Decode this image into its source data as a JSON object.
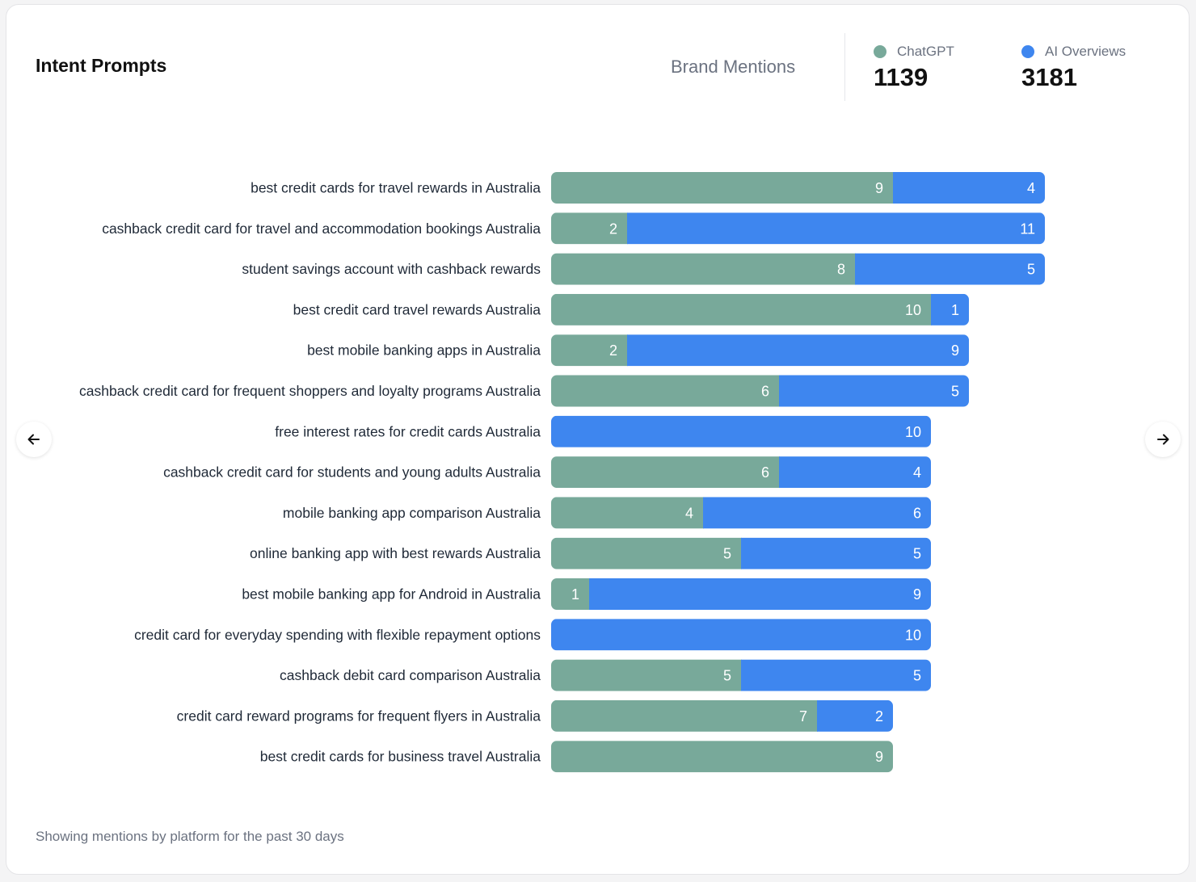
{
  "card": {
    "title": "Intent Prompts",
    "metric_label": "Brand Mentions",
    "footer": "Showing mentions by platform for the past 30 days"
  },
  "legend": [
    {
      "name": "ChatGPT",
      "total": "1139",
      "color": "#78a99a"
    },
    {
      "name": "AI Overviews",
      "total": "3181",
      "color": "#3e86ef"
    }
  ],
  "nav": {
    "prev_icon": "arrow-left-icon",
    "next_icon": "arrow-right-icon"
  },
  "chart_data": {
    "type": "bar",
    "orientation": "horizontal",
    "stacked": true,
    "categories": [
      "best credit cards for travel rewards in Australia",
      "cashback credit card for travel and accommodation bookings Australia",
      "student savings account with cashback rewards",
      "best credit card travel rewards Australia",
      "best mobile banking apps in Australia",
      "cashback credit card for frequent shoppers and loyalty programs Australia",
      "free interest rates for credit cards Australia",
      "cashback credit card for students and young adults Australia",
      "mobile banking app comparison Australia",
      "online banking app with best rewards Australia",
      "best mobile banking app for Android in Australia",
      "credit card for everyday spending with flexible repayment options",
      "cashback debit card comparison Australia",
      "credit card reward programs for frequent flyers in Australia",
      "best credit cards for business travel Australia"
    ],
    "series": [
      {
        "name": "ChatGPT",
        "color": "#78a99a",
        "values": [
          9,
          2,
          8,
          10,
          2,
          6,
          0,
          6,
          4,
          5,
          1,
          0,
          5,
          7,
          9
        ]
      },
      {
        "name": "AI Overviews",
        "color": "#3e86ef",
        "values": [
          4,
          11,
          5,
          1,
          9,
          5,
          10,
          4,
          6,
          5,
          9,
          10,
          5,
          2,
          0
        ]
      }
    ],
    "xlim": [
      0,
      13
    ],
    "grid": false
  }
}
